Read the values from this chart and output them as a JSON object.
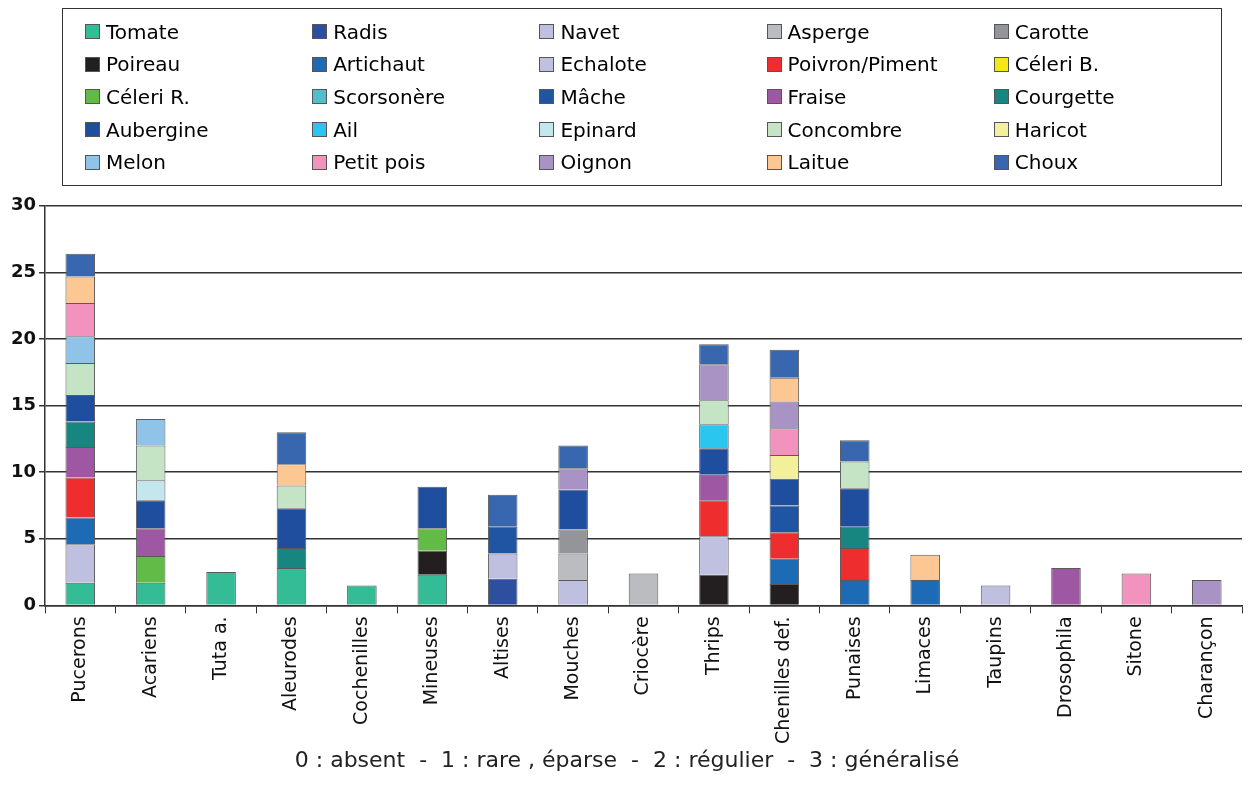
{
  "chart_data": {
    "type": "bar",
    "stacked": true,
    "categories": [
      "Pucerons",
      "Acariens",
      "Tuta a.",
      "Aleurodes",
      "Cochenilles",
      "Mineuses",
      "Altises",
      "Mouches",
      "Criocère",
      "Thrips",
      "Chenilles def.",
      "Punaises",
      "Limaces",
      "Taupins",
      "Drosophila",
      "Sitone",
      "Charançon"
    ],
    "series": [
      {
        "name": "Tomate",
        "color": "#33bc96",
        "values": [
          1.7,
          1.7,
          2.5,
          2.8,
          1.5,
          2.3,
          null,
          null,
          null,
          null,
          null,
          null,
          null,
          null,
          null,
          null,
          null
        ]
      },
      {
        "name": "Radis",
        "color": "#2e4f9f",
        "values": [
          null,
          null,
          null,
          null,
          null,
          null,
          2.0,
          null,
          null,
          null,
          null,
          null,
          null,
          null,
          null,
          null,
          null
        ]
      },
      {
        "name": "Navet",
        "color": "#bfc0e0",
        "values": [
          2.9,
          null,
          null,
          null,
          null,
          null,
          1.9,
          1.9,
          null,
          null,
          null,
          null,
          null,
          1.5,
          null,
          null,
          null
        ]
      },
      {
        "name": "Asperge",
        "color": "#bbbcbf",
        "values": [
          null,
          null,
          null,
          null,
          null,
          null,
          null,
          2.0,
          2.4,
          null,
          null,
          null,
          null,
          null,
          null,
          null,
          null
        ]
      },
      {
        "name": "Carotte",
        "color": "#939598",
        "values": [
          null,
          null,
          null,
          null,
          null,
          null,
          null,
          1.8,
          null,
          null,
          null,
          null,
          null,
          null,
          null,
          null,
          null
        ]
      },
      {
        "name": "Poireau",
        "color": "#231f20",
        "values": [
          null,
          null,
          null,
          null,
          null,
          1.8,
          null,
          null,
          null,
          2.3,
          1.6,
          null,
          null,
          null,
          null,
          null,
          null
        ]
      },
      {
        "name": "Artichaut",
        "color": "#1e6bb5",
        "values": [
          2.0,
          null,
          null,
          null,
          null,
          null,
          null,
          null,
          null,
          null,
          1.9,
          1.9,
          1.9,
          null,
          null,
          null,
          null
        ]
      },
      {
        "name": "Echalote",
        "color": "#c0c1e1",
        "values": [
          null,
          null,
          null,
          null,
          null,
          null,
          null,
          null,
          null,
          2.9,
          null,
          null,
          null,
          null,
          null,
          null,
          null
        ]
      },
      {
        "name": "Poivron/Piment",
        "color": "#ee2e2e",
        "values": [
          3.0,
          null,
          null,
          null,
          null,
          null,
          null,
          null,
          null,
          2.7,
          2.0,
          2.4,
          null,
          null,
          null,
          null,
          null
        ]
      },
      {
        "name": "Céleri B.",
        "color": "#f5e61a",
        "values": [
          null,
          null,
          null,
          null,
          null,
          null,
          null,
          null,
          null,
          null,
          null,
          null,
          null,
          null,
          null,
          null,
          null
        ]
      },
      {
        "name": "Céleri R.",
        "color": "#62bb46",
        "values": [
          null,
          2.0,
          null,
          null,
          null,
          1.7,
          null,
          null,
          null,
          null,
          null,
          null,
          null,
          null,
          null,
          null,
          null
        ]
      },
      {
        "name": "Scorsonère",
        "color": "#4fbfc9",
        "values": [
          null,
          null,
          null,
          null,
          null,
          null,
          null,
          null,
          null,
          null,
          null,
          null,
          null,
          null,
          null,
          null,
          null
        ]
      },
      {
        "name": "Mâche",
        "color": "#1f55a3",
        "values": [
          null,
          null,
          null,
          null,
          null,
          null,
          2.0,
          null,
          null,
          null,
          2.0,
          null,
          null,
          null,
          null,
          null,
          null
        ]
      },
      {
        "name": "Fraise",
        "color": "#9e58a3",
        "values": [
          2.3,
          2.1,
          null,
          null,
          null,
          null,
          null,
          null,
          null,
          1.9,
          null,
          null,
          null,
          null,
          2.8,
          null,
          null
        ]
      },
      {
        "name": "Courgette",
        "color": "#178580",
        "values": [
          1.9,
          null,
          null,
          1.5,
          null,
          null,
          null,
          null,
          null,
          null,
          null,
          1.6,
          null,
          null,
          null,
          null,
          null
        ]
      },
      {
        "name": "Aubergine",
        "color": "#1f4e9f",
        "values": [
          2.0,
          2.1,
          null,
          3.0,
          null,
          3.1,
          null,
          3.0,
          null,
          2.0,
          2.0,
          2.9,
          null,
          null,
          null,
          null,
          null
        ]
      },
      {
        "name": "Ail",
        "color": "#2ac6f0",
        "values": [
          null,
          null,
          null,
          null,
          null,
          null,
          null,
          null,
          null,
          1.8,
          null,
          null,
          null,
          null,
          null,
          null,
          null
        ]
      },
      {
        "name": "Epinard",
        "color": "#c4e7ee",
        "values": [
          null,
          1.5,
          null,
          null,
          null,
          null,
          null,
          null,
          null,
          null,
          null,
          null,
          null,
          null,
          null,
          null,
          null
        ]
      },
      {
        "name": "Concombre",
        "color": "#c5e3c5",
        "values": [
          2.4,
          2.6,
          null,
          1.7,
          null,
          null,
          null,
          null,
          null,
          1.8,
          null,
          2.0,
          null,
          null,
          null,
          null,
          null
        ]
      },
      {
        "name": "Haricot",
        "color": "#f2f09a",
        "values": [
          null,
          null,
          null,
          null,
          null,
          null,
          null,
          null,
          null,
          null,
          1.8,
          null,
          null,
          null,
          null,
          null,
          null
        ]
      },
      {
        "name": "Melon",
        "color": "#8fc3e8",
        "values": [
          2.0,
          2.0,
          null,
          null,
          null,
          null,
          null,
          null,
          null,
          null,
          null,
          null,
          null,
          null,
          null,
          null,
          null
        ]
      },
      {
        "name": "Petit pois",
        "color": "#f293bd",
        "values": [
          2.5,
          null,
          null,
          null,
          null,
          null,
          null,
          null,
          null,
          null,
          2.0,
          null,
          null,
          null,
          null,
          2.4,
          null
        ]
      },
      {
        "name": "Oignon",
        "color": "#a993c4",
        "values": [
          null,
          null,
          null,
          null,
          null,
          null,
          null,
          1.6,
          null,
          2.7,
          2.0,
          null,
          null,
          null,
          null,
          null,
          1.9
        ]
      },
      {
        "name": "Laitue",
        "color": "#fcc793",
        "values": [
          2.0,
          null,
          null,
          1.6,
          null,
          null,
          null,
          null,
          null,
          null,
          1.8,
          null,
          1.9,
          null,
          null,
          null,
          null
        ]
      },
      {
        "name": "Choux",
        "color": "#3867b0",
        "values": [
          1.7,
          null,
          null,
          2.4,
          null,
          null,
          2.4,
          1.7,
          null,
          1.5,
          2.1,
          1.6,
          null,
          null,
          null,
          null,
          null
        ]
      }
    ],
    "ylim": [
      0,
      30
    ],
    "yticks": [
      0,
      5,
      10,
      15,
      20,
      25,
      30
    ],
    "grid": "y",
    "legend": "top",
    "annotations": [
      "0 : absent  -  1 : rare , éparse  -  2 : régulier  -  3 : généralisé"
    ]
  }
}
